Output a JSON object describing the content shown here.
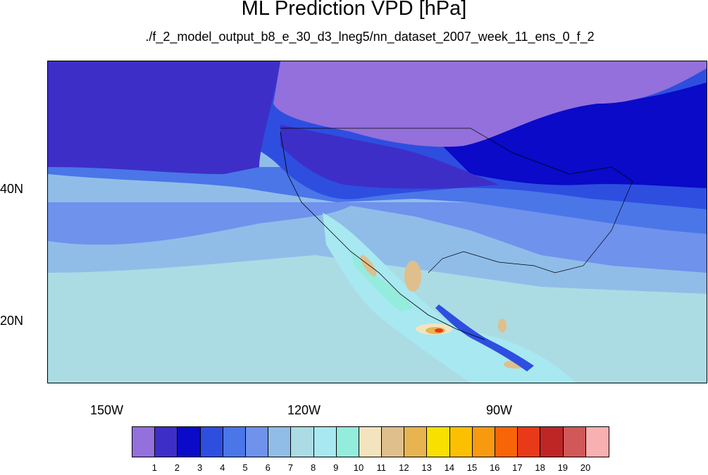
{
  "title": "ML Prediction VPD [hPa]",
  "subtitle": "./f_2_model_output_b8_e_30_d3_lneg5/nn_dataset_2007_week_11_ens_0_f_2",
  "latitude_labels": [
    "40N",
    "20N"
  ],
  "longitude_labels": [
    "150W",
    "120W",
    "90W"
  ],
  "colorbar": {
    "colors": [
      "#9370db",
      "#3e2ec8",
      "#0a0ac8",
      "#2e4ee0",
      "#4a76e8",
      "#6f92ec",
      "#90bde8",
      "#abdce4",
      "#a8e8f0",
      "#94ecdc",
      "#f3e4be",
      "#dfbf8c",
      "#e8b452",
      "#f8e000",
      "#fbc000",
      "#f89a10",
      "#f86408",
      "#e83a18",
      "#be2626",
      "#d05858",
      "#f8b0b0"
    ],
    "tick_labels": [
      "1",
      "2",
      "3",
      "4",
      "5",
      "6",
      "7",
      "8",
      "9",
      "10",
      "11",
      "12",
      "13",
      "14",
      "15",
      "16",
      "17",
      "18",
      "19",
      "20"
    ]
  }
}
